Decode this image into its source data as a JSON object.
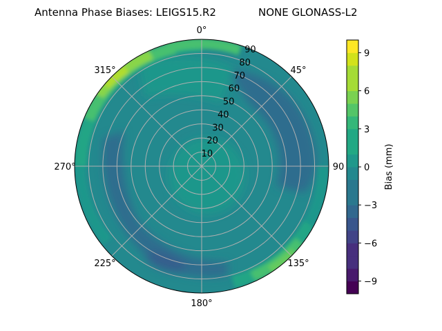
{
  "chart_data": {
    "type": "heatmap",
    "subtype": "polar-contourf",
    "title": "Antenna Phase Biases: LEIGS15.R2      NONE GLONASS-L2",
    "title_left": "Antenna Phase Biases: LEIGS15.R2",
    "title_right": "NONE GLONASS-L2",
    "theta_direction": "clockwise",
    "theta_zero": "N",
    "theta_ticks": [
      "0°",
      "45°",
      "90",
      "135°",
      "180°",
      "225°",
      "270°",
      "315°"
    ],
    "theta_tick_angles": [
      0,
      45,
      90,
      135,
      180,
      225,
      270,
      315
    ],
    "r_ticks": [
      "10",
      "20",
      "30",
      "40",
      "50",
      "60",
      "70",
      "80",
      "90"
    ],
    "r_tick_values": [
      10,
      20,
      30,
      40,
      50,
      60,
      70,
      80,
      90
    ],
    "rlim": [
      0,
      90
    ],
    "grid": true,
    "colormap": "viridis",
    "colorbar": {
      "label": "Bias (mm)",
      "vmin": -10,
      "vmax": 10,
      "levels": 20,
      "ticks": [
        "9",
        "6",
        "3",
        "0",
        "−3",
        "−6",
        "−9"
      ],
      "tick_values": [
        9,
        6,
        3,
        0,
        -3,
        -6,
        -9
      ],
      "colors": [
        "#440154",
        "#481769",
        "#472a7a",
        "#433d84",
        "#3d4e8a",
        "#355e8d",
        "#2e6d8e",
        "#297b8e",
        "#23898e",
        "#1f978b",
        "#21a585",
        "#2eb37c",
        "#46c06f",
        "#65cb5e",
        "#89d548",
        "#b0dd2f",
        "#d8e219",
        "#fde725",
        "#fde725",
        "#fde725"
      ]
    },
    "regions": [
      {
        "description": "outer ring NW (azimuth ~290-340, elevation 80-90)",
        "value_mm": 8
      },
      {
        "description": "outer ring N/NNE",
        "value_mm": 5
      },
      {
        "description": "outer ring SE (azimuth ~120-160)",
        "value_mm": 5
      },
      {
        "description": "inner cap (elevation 0-25)",
        "value_mm": 1
      },
      {
        "description": "NE band (azimuth ~40-80, elevation 50-75)",
        "value_mm": -3
      },
      {
        "description": "W/SW band (azimuth ~220-280, elevation 60-80)",
        "value_mm": -3
      },
      {
        "description": "SSW minimum (azimuth ~200-210, elevation ~75)",
        "value_mm": -5
      },
      {
        "description": "general mid-field",
        "value_mm": -1
      }
    ]
  }
}
